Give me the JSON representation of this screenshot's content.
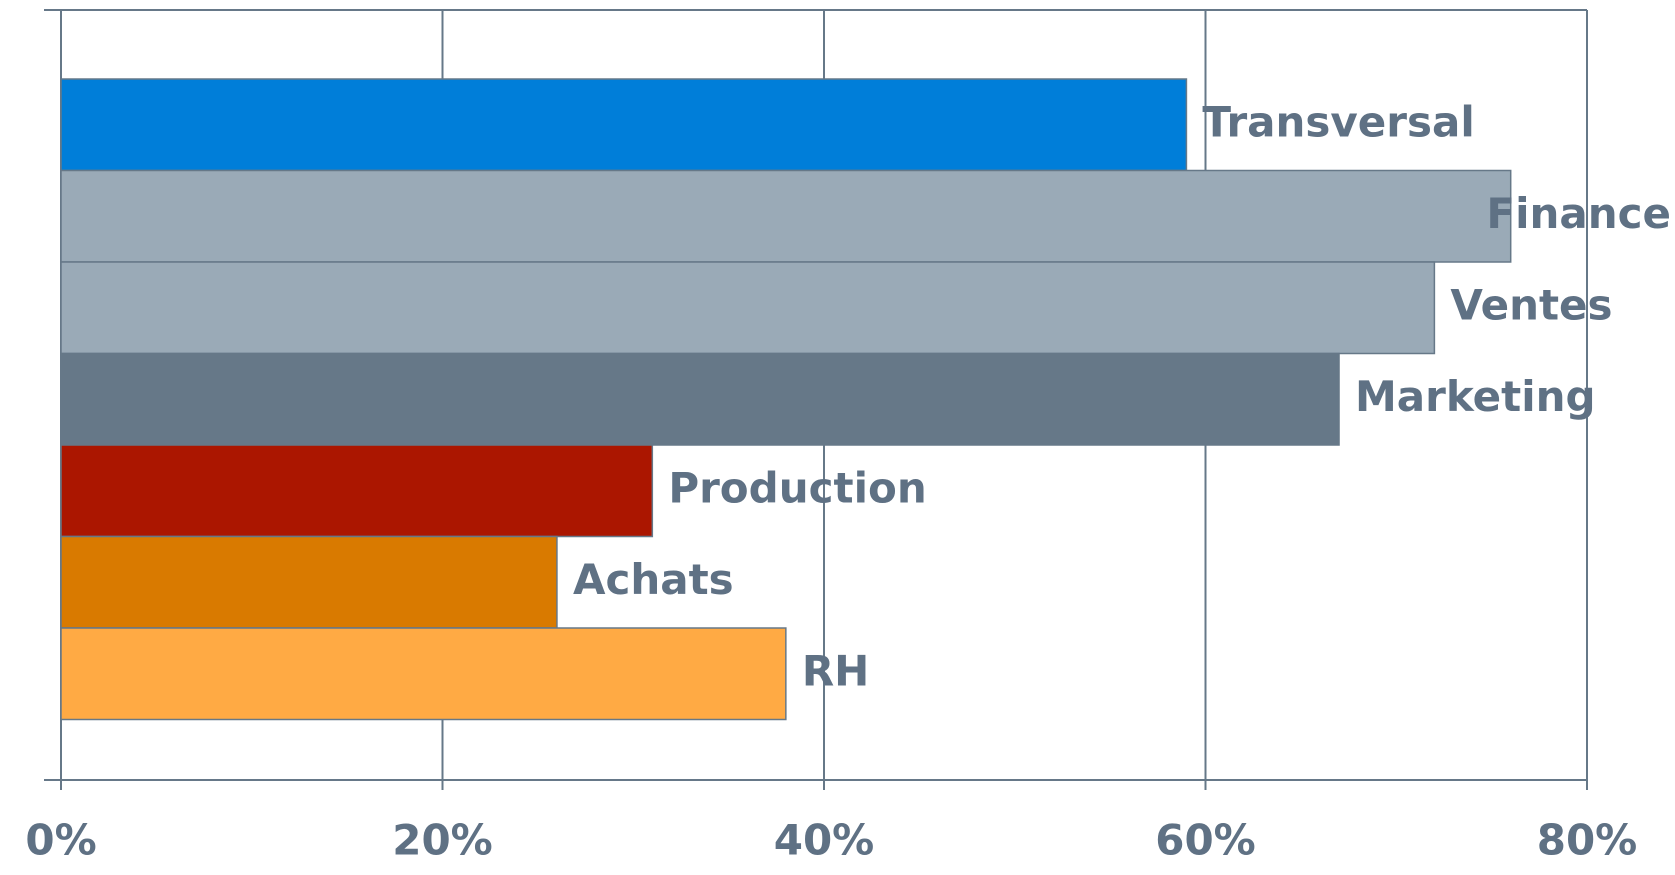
{
  "chart_data": {
    "type": "barh",
    "categories": [
      "Transversal",
      "Finance",
      "Ventes",
      "Marketing",
      "Production",
      "Achats",
      "RH"
    ],
    "values": [
      59,
      76,
      72,
      67,
      31,
      26,
      38
    ],
    "colors": [
      "#007ed9",
      "#9aaab7",
      "#9aaab7",
      "#667888",
      "#ab1600",
      "#d97a00",
      "#ffaa44"
    ],
    "xlim": [
      0,
      80
    ],
    "xticks": [
      {
        "value": 0,
        "label": "0%"
      },
      {
        "value": 20,
        "label": "20%"
      },
      {
        "value": 40,
        "label": "40%"
      },
      {
        "value": 60,
        "label": "60%"
      },
      {
        "value": 80,
        "label": "80%"
      }
    ],
    "grid": true
  }
}
